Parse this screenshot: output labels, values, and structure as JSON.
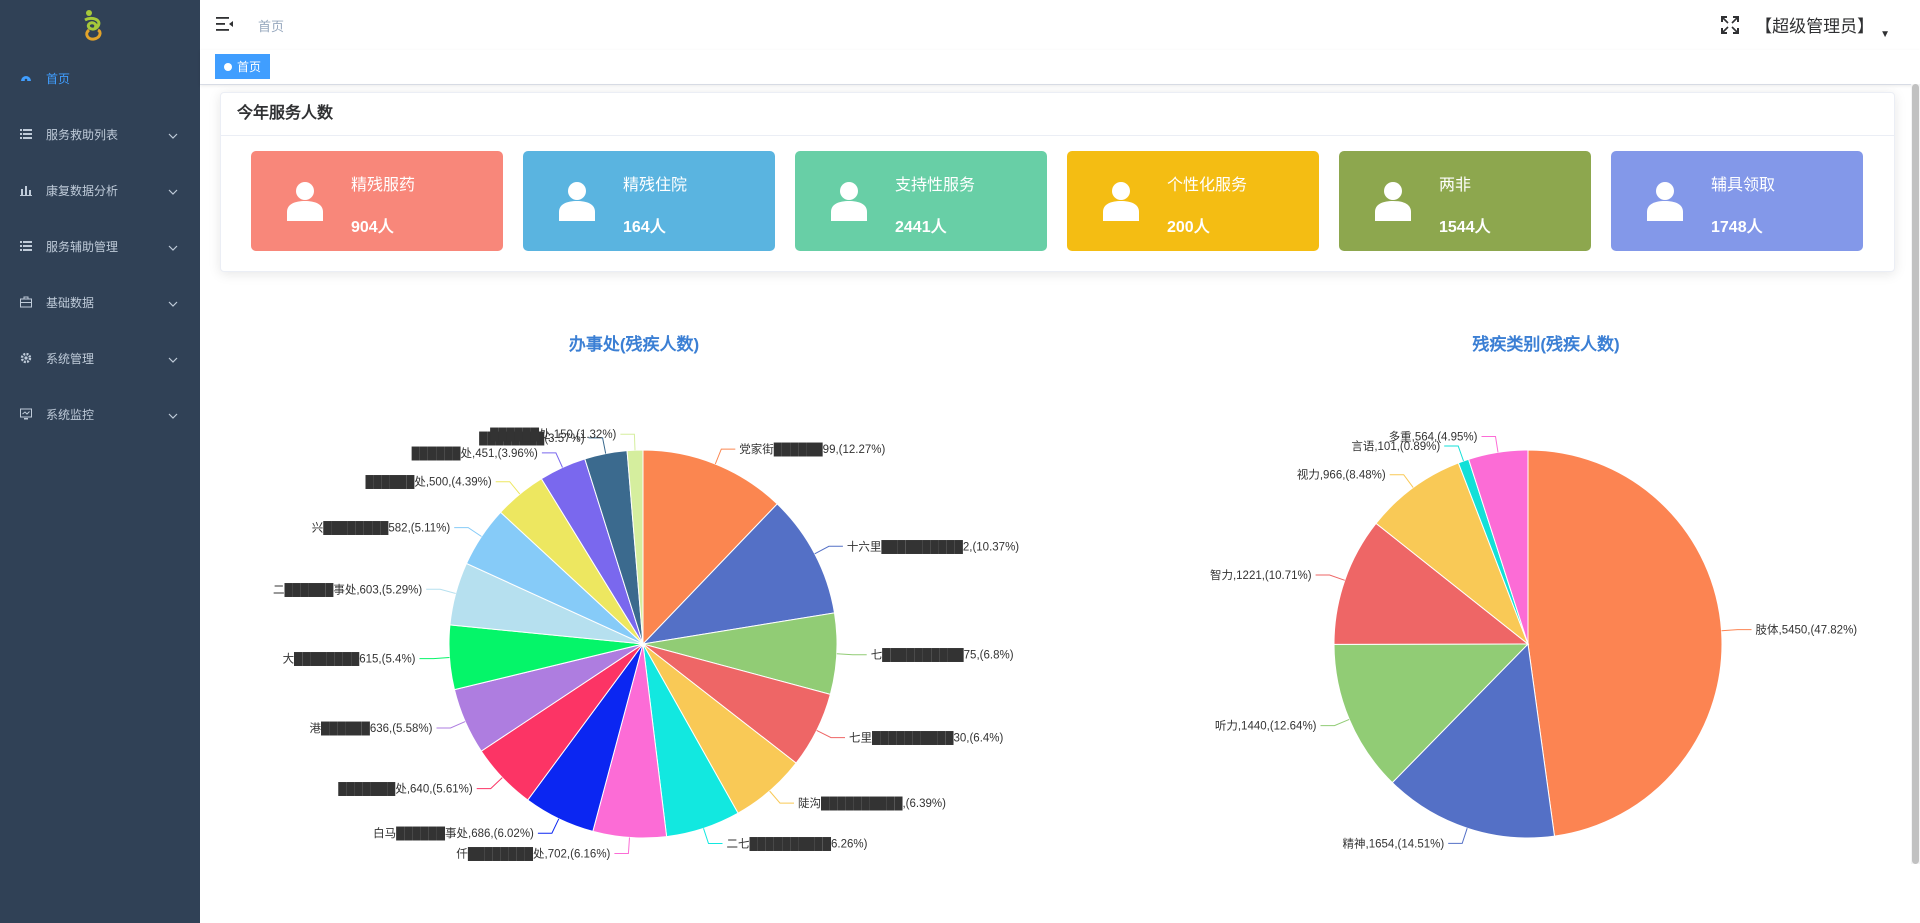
{
  "sidebar": {
    "items": [
      {
        "label": "首页",
        "icon": "dashboard-icon",
        "active": true
      },
      {
        "label": "服务救助列表",
        "icon": "list-icon"
      },
      {
        "label": "康复数据分析",
        "icon": "bar-chart-icon"
      },
      {
        "label": "服务辅助管理",
        "icon": "list-icon"
      },
      {
        "label": "基础数据",
        "icon": "briefcase-icon"
      },
      {
        "label": "系统管理",
        "icon": "gear-icon"
      },
      {
        "label": "系统监控",
        "icon": "monitor-icon"
      }
    ]
  },
  "header": {
    "breadcrumb": "首页",
    "user": "【超级管理员】"
  },
  "tags": [
    "首页"
  ],
  "card": {
    "title": "今年服务人数",
    "stats": [
      {
        "label": "精残服药",
        "value": "904人",
        "color": "#f8877a"
      },
      {
        "label": "精残住院",
        "value": "164人",
        "color": "#5ab4e0"
      },
      {
        "label": "支持性服务",
        "value": "2441人",
        "color": "#68cfa6"
      },
      {
        "label": "个性化服务",
        "value": "200人",
        "color": "#f4bd13"
      },
      {
        "label": "两非",
        "value": "1544人",
        "color": "#8da74e"
      },
      {
        "label": "辅具领取",
        "value": "1748人",
        "color": "#8398e9"
      }
    ]
  },
  "chart_data": [
    {
      "type": "pie",
      "title": "办事处(残疾人数)",
      "slices": [
        {
          "label": "党家街██████99,(12.27%)",
          "percent": 12.27,
          "color": "#fb8650"
        },
        {
          "label": "十六里██████████2,(10.37%)",
          "percent": 10.37,
          "color": "#5470c6"
        },
        {
          "label": "七██████████75,(6.8%)",
          "percent": 6.8,
          "color": "#91cc75"
        },
        {
          "label": "七里██████████30,(6.4%)",
          "percent": 6.4,
          "color": "#ee6666"
        },
        {
          "label": "陡沟██████████,(6.39%)",
          "percent": 6.39,
          "color": "#f9c956"
        },
        {
          "label": "二七██████████6.26%)",
          "percent": 6.26,
          "color": "#12e8e0"
        },
        {
          "label": "仟████████处,702,(6.16%)",
          "percent": 6.16,
          "color": "#fc6cd6"
        },
        {
          "label": "白马██████事处,686,(6.02%)",
          "percent": 6.02,
          "color": "#0b26f2"
        },
        {
          "label": "███████处,640,(5.61%)",
          "percent": 5.61,
          "color": "#fc3465"
        },
        {
          "label": "港██████636,(5.58%)",
          "percent": 5.58,
          "color": "#ae7de0"
        },
        {
          "label": "大████████615,(5.4%)",
          "percent": 5.4,
          "color": "#05f569"
        },
        {
          "label": "二██████事处,603,(5.29%)",
          "percent": 5.29,
          "color": "#b6e0ef"
        },
        {
          "label": "兴████████582,(5.11%)",
          "percent": 5.11,
          "color": "#86cbf8"
        },
        {
          "label": "██████处,500,(4.39%)",
          "percent": 4.39,
          "color": "#ede760"
        },
        {
          "label": "██████处,451,(3.96%)",
          "percent": 3.96,
          "color": "#7a68ee"
        },
        {
          "label": "████████(3.57%)",
          "percent": 3.57,
          "color": "#3b6a8e"
        },
        {
          "label": "██████处,150,(1.32%)",
          "percent": 1.32,
          "color": "#d5ee9e"
        }
      ]
    },
    {
      "type": "pie",
      "title": "残疾类别(残疾人数)",
      "slices": [
        {
          "label": "肢体,5450,(47.82%)",
          "percent": 47.82,
          "color": "#fc8452"
        },
        {
          "label": "精神,1654,(14.51%)",
          "percent": 14.51,
          "color": "#5470c6"
        },
        {
          "label": "听力,1440,(12.64%)",
          "percent": 12.64,
          "color": "#91cc75"
        },
        {
          "label": "智力,1221,(10.71%)",
          "percent": 10.71,
          "color": "#ee6666"
        },
        {
          "label": "视力,966,(8.48%)",
          "percent": 8.48,
          "color": "#f9c956"
        },
        {
          "label": "言语,101,(0.89%)",
          "percent": 0.89,
          "color": "#12e0d8"
        },
        {
          "label": "多重,564,(4.95%)",
          "percent": 4.95,
          "color": "#fc6cd6"
        }
      ]
    }
  ]
}
